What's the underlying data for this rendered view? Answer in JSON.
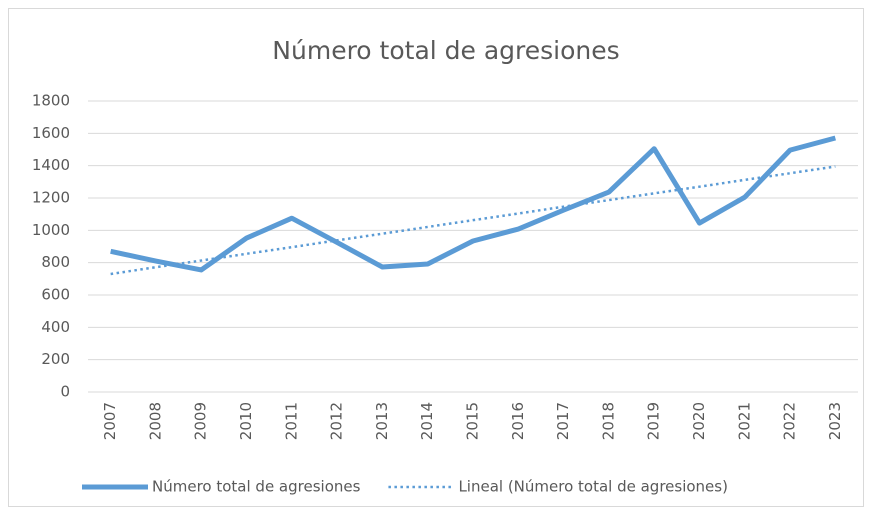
{
  "chart_data": {
    "type": "line",
    "title": "Número total de agresiones",
    "categories": [
      "2007",
      "2008",
      "2009",
      "2010",
      "2011",
      "2012",
      "2013",
      "2014",
      "2015",
      "2016",
      "2017",
      "2018",
      "2019",
      "2020",
      "2021",
      "2022",
      "2023"
    ],
    "series": [
      {
        "name": "Número total de agresiones",
        "color": "#5b9bd5",
        "style": "solid",
        "values": [
          870,
          810,
          755,
          952,
          1075,
          925,
          773,
          792,
          934,
          1008,
          1125,
          1237,
          1505,
          1045,
          1205,
          1496,
          1571
        ]
      },
      {
        "name": "Lineal (Número total de agresiones)",
        "color": "#5b9bd5",
        "style": "dotted",
        "values": [
          730,
          772,
          813,
          855,
          896,
          938,
          979,
          1021,
          1063,
          1104,
          1146,
          1187,
          1229,
          1270,
          1312,
          1353,
          1395
        ]
      }
    ],
    "ylim": [
      0,
      1800
    ],
    "yticks": [
      0,
      200,
      400,
      600,
      800,
      1000,
      1200,
      1400,
      1600,
      1800
    ],
    "grid": true,
    "legend": "bottom"
  }
}
